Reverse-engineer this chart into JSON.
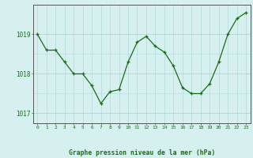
{
  "x": [
    0,
    1,
    2,
    3,
    4,
    5,
    6,
    7,
    8,
    9,
    10,
    11,
    12,
    13,
    14,
    15,
    16,
    17,
    18,
    19,
    20,
    21,
    22,
    23
  ],
  "y": [
    1019.0,
    1018.6,
    1018.6,
    1018.3,
    1018.0,
    1018.0,
    1017.7,
    1017.25,
    1017.55,
    1017.6,
    1018.3,
    1018.8,
    1018.95,
    1018.7,
    1018.55,
    1018.2,
    1017.65,
    1017.5,
    1017.5,
    1017.75,
    1018.3,
    1019.0,
    1019.4,
    1019.55
  ],
  "line_color": "#1a6b1a",
  "marker_color": "#1a6b1a",
  "bg_color": "#d6f0f0",
  "grid_v_color": "#b8dede",
  "grid_h_color": "#f0b8b8",
  "title": "Graphe pression niveau de la mer (hPa)",
  "title_color": "#1a6b1a",
  "yticks": [
    1017,
    1018,
    1019
  ],
  "xtick_labels": [
    "0",
    "1",
    "2",
    "3",
    "4",
    "5",
    "6",
    "7",
    "8",
    "9",
    "10",
    "11",
    "12",
    "13",
    "14",
    "15",
    "16",
    "17",
    "18",
    "19",
    "20",
    "21",
    "22",
    "23"
  ],
  "ylim": [
    1016.75,
    1019.75
  ],
  "xlim": [
    -0.5,
    23.5
  ],
  "tick_color": "#1a6b1a",
  "spine_color": "#555555"
}
